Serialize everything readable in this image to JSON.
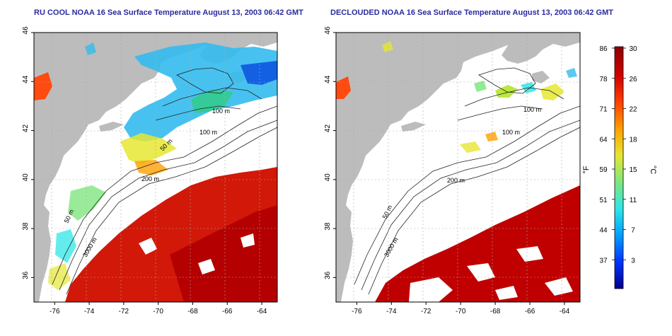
{
  "panels": [
    {
      "title": "RU COOL NOAA 16 Sea Surface Temperature August 13, 2003 06:42 GMT",
      "variant": "cool"
    },
    {
      "title": "DECLOUDED NOAA 16 Sea Surface Temperature August 13, 2003 06:42 GMT",
      "variant": "declouded"
    }
  ],
  "axes": {
    "lon_ticks": [
      "-76",
      "-74",
      "-72",
      "-70",
      "-68",
      "-66",
      "-64"
    ],
    "lon_values": [
      -76,
      -74,
      -72,
      -70,
      -68,
      -66,
      -64
    ],
    "lat_ticks": [
      "36",
      "38",
      "40",
      "42",
      "44",
      "46"
    ],
    "lat_values": [
      36,
      38,
      40,
      42,
      44,
      46
    ],
    "lon_range": [
      -77.2,
      -63.1
    ],
    "lat_range": [
      35.0,
      46.0
    ]
  },
  "contours": {
    "labels": [
      "100 m",
      "100 m",
      "50 m",
      "200 m",
      "50 m",
      "3000 m"
    ]
  },
  "colorbar": {
    "fahrenheit_ticks": [
      "86",
      "78",
      "71",
      "64",
      "59",
      "51",
      "44",
      "37"
    ],
    "celsius_ticks": [
      "30",
      "26",
      "22",
      "18",
      "15",
      "11",
      "7",
      "3"
    ],
    "fahrenheit_label": "°F",
    "celsius_label": "°C",
    "celsius_range": [
      0,
      30
    ],
    "colors": [
      "#00008c",
      "#0033ff",
      "#00a0ff",
      "#2fe6e6",
      "#7fe67f",
      "#e6e632",
      "#ffa000",
      "#ff4000",
      "#d20000",
      "#8c0000"
    ]
  },
  "styles": {
    "land_color": "#bcbcbc",
    "ocean_color": "#ffffff",
    "title_color": "#2a2aa0"
  }
}
